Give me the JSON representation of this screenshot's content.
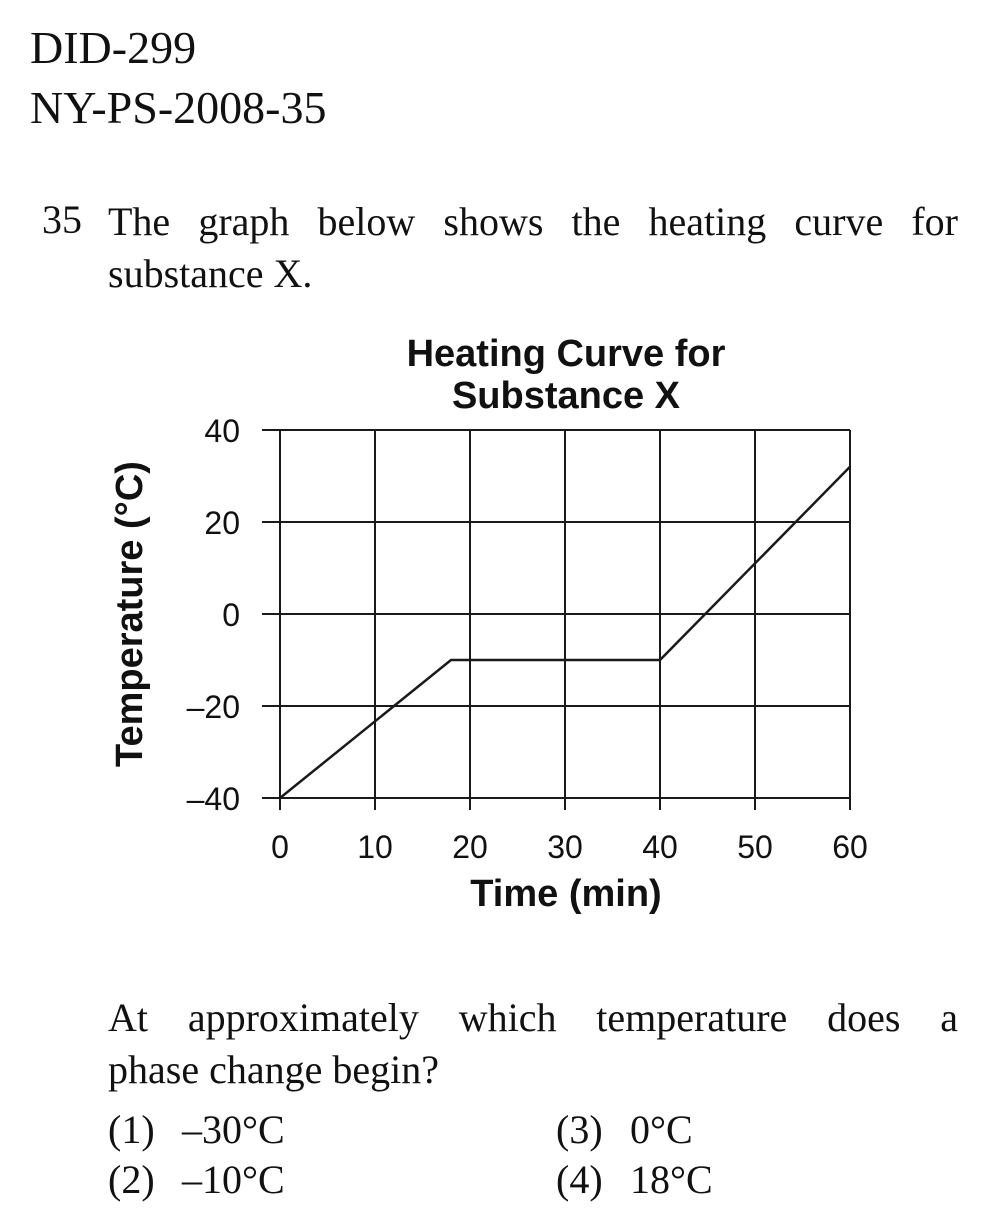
{
  "header": {
    "line1": "DID-299",
    "line2": "NY-PS-2008-35"
  },
  "question": {
    "number": "35",
    "text_line1": "The graph below shows the heating curve for",
    "text_line2": "substance X.",
    "prompt_line1": "At approximately which temperature does a",
    "prompt_line2": "phase change begin?",
    "choices": [
      {
        "num": "(1)",
        "text": "–30°C"
      },
      {
        "num": "(2)",
        "text": "–10°C"
      },
      {
        "num": "(3)",
        "text": "0°C"
      },
      {
        "num": "(4)",
        "text": "18°C"
      }
    ]
  },
  "chart_data": {
    "type": "line",
    "title_line1": "Heating Curve for",
    "title_line2": "Substance X",
    "xlabel": "Time (min)",
    "ylabel": "Temperature (°C)",
    "xlim": [
      0,
      60
    ],
    "ylim": [
      -40,
      40
    ],
    "xticks": [
      "0",
      "10",
      "20",
      "30",
      "40",
      "50",
      "60"
    ],
    "yticks": [
      "40",
      "20",
      "0",
      "–20",
      "–40"
    ],
    "xtick_values": [
      0,
      10,
      20,
      30,
      40,
      50,
      60
    ],
    "ytick_values": [
      40,
      20,
      0,
      -20,
      -40
    ],
    "grid": true,
    "series": [
      {
        "x": [
          0,
          18,
          40,
          60
        ],
        "y": [
          -40,
          -10,
          -10,
          32
        ]
      }
    ],
    "line_color": "#1a1a1a"
  }
}
